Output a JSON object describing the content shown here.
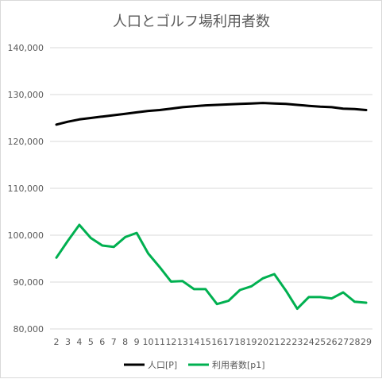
{
  "chart_data": {
    "type": "line",
    "title": "人口とゴルフ場利用者数",
    "xlabel": "",
    "ylabel": "",
    "ylim": [
      80000,
      140000
    ],
    "yticks": [
      "80,000",
      "90,000",
      "100,000",
      "110,000",
      "120,000",
      "130,000",
      "140,000"
    ],
    "x": [
      2,
      3,
      4,
      5,
      6,
      7,
      8,
      9,
      10,
      11,
      12,
      13,
      14,
      15,
      16,
      17,
      18,
      19,
      20,
      21,
      22,
      23,
      24,
      25,
      26,
      27,
      28,
      29
    ],
    "grid": true,
    "legend": "bottom",
    "series": [
      {
        "name": "人口[P]",
        "color": "#000000",
        "values": [
          123600,
          124200,
          124700,
          125000,
          125300,
          125600,
          125900,
          126200,
          126500,
          126700,
          127000,
          127300,
          127500,
          127700,
          127800,
          127900,
          128000,
          128100,
          128200,
          128100,
          128000,
          127800,
          127600,
          127400,
          127300,
          127000,
          126900,
          126700
        ]
      },
      {
        "name": "利用者数[p1]",
        "color": "#00b050",
        "values": [
          95200,
          98800,
          102200,
          99400,
          97800,
          97500,
          99600,
          100500,
          96100,
          93200,
          90100,
          90200,
          88500,
          88500,
          85300,
          86000,
          88300,
          89100,
          90800,
          91700,
          88200,
          84300,
          86800,
          86800,
          86500,
          87800,
          85800,
          85600
        ]
      }
    ]
  }
}
